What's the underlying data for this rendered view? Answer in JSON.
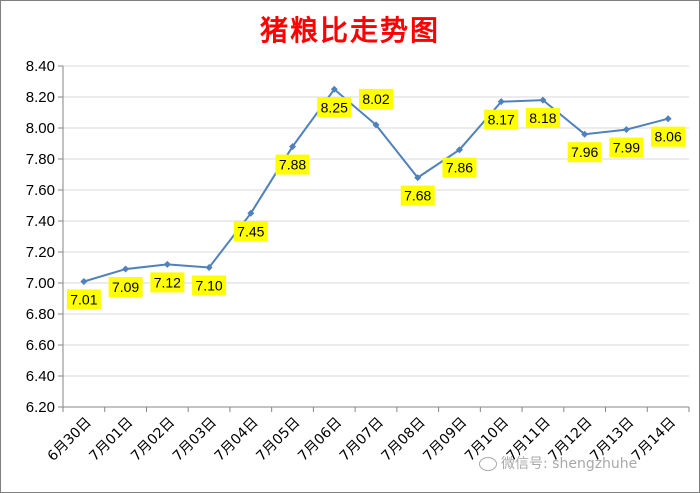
{
  "chart_data": {
    "type": "line",
    "title": "猪粮比走势图",
    "categories": [
      "6月30日",
      "7月01日",
      "7月02日",
      "7月03日",
      "7月04日",
      "7月05日",
      "7月06日",
      "7月07日",
      "7月08日",
      "7月09日",
      "7月10日",
      "7月11日",
      "7月12日",
      "7月13日",
      "7月14日"
    ],
    "values": [
      7.01,
      7.09,
      7.12,
      7.1,
      7.45,
      7.88,
      8.25,
      8.02,
      7.68,
      7.86,
      8.17,
      8.18,
      7.96,
      7.99,
      8.06
    ],
    "data_labels": [
      "7.01",
      "7.09",
      "7.12",
      "7.10",
      "7.45",
      "7.88",
      "8.25",
      "8.02",
      "7.68",
      "7.86",
      "8.17",
      "8.18",
      "7.96",
      "7.99",
      "8.06"
    ],
    "yticks": [
      "6.20",
      "6.40",
      "6.60",
      "6.80",
      "7.00",
      "7.20",
      "7.40",
      "7.60",
      "7.80",
      "8.00",
      "8.20",
      "8.40"
    ],
    "ylim": [
      6.2,
      8.4
    ],
    "xlabel": "",
    "ylabel": "",
    "grid": true,
    "legend": "none",
    "colors": {
      "title": "#ff0000",
      "line": "#4f81bd",
      "label_bg": "#ffff00",
      "grid": "#d9d9d9"
    }
  },
  "watermark": "微信号: shengzhuhe"
}
